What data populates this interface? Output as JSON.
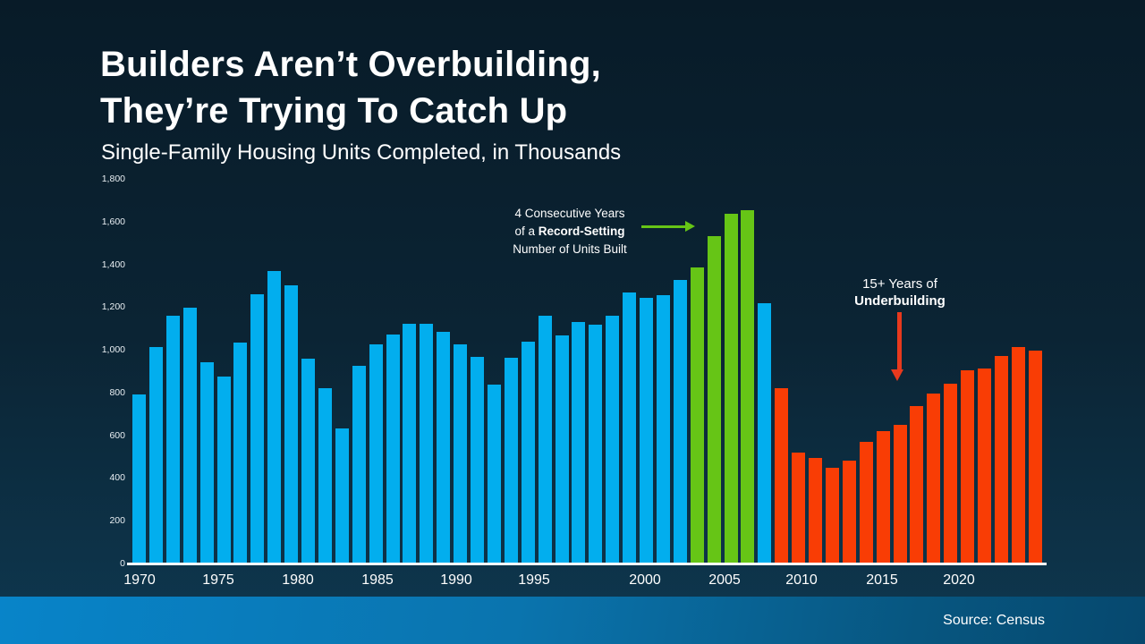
{
  "header": {
    "title_line1": "Builders Aren’t Overbuilding,",
    "title_line2": "They’re Trying To Catch Up",
    "subtitle": "Single-Family Housing Units Completed, in Thousands"
  },
  "annotations": {
    "record": {
      "line1": "4 Consecutive Years",
      "line2_prefix": "of a ",
      "line2_bold": "Record-Setting",
      "line3": "Number of Units Built"
    },
    "underbuilding": {
      "line1": "15+ Years of",
      "line2_bold": "Underbuilding"
    }
  },
  "footer": {
    "source": "Source: Census"
  },
  "colors": {
    "background_top": "#081B28",
    "background_bottom": "#0E3850",
    "bar_blue": "#02AEEE",
    "bar_green": "#66C516",
    "bar_red": "#F93D05",
    "arrow_green": "#66C516",
    "arrow_red": "#E8391D",
    "axis_line": "#FFFFFF",
    "text": "#FFFFFF",
    "footer_gradient_left": "#0884C9",
    "footer_gradient_right": "#06486E"
  },
  "chart_data": {
    "type": "bar",
    "title": "Builders Aren’t Overbuilding, They’re Trying To Catch Up",
    "subtitle": "Single-Family Housing Units Completed, in Thousands",
    "series_name": "Single-Family Housing Units Completed (thousands)",
    "ylim": [
      0,
      1800
    ],
    "grid": false,
    "legend": false,
    "ytick_values": [
      0,
      200,
      400,
      600,
      800,
      1000,
      1200,
      1400,
      1600,
      1800
    ],
    "ytick_labels": [
      "0",
      "200",
      "400",
      "600",
      "800",
      "1,000",
      "1,200",
      "1,400",
      "1,600",
      "1,800"
    ],
    "xtick_years": [
      1970,
      1975,
      1980,
      1985,
      1990,
      1995,
      2000,
      2005,
      2010,
      2015,
      2020
    ],
    "years": [
      1970,
      1971,
      1972,
      1973,
      1974,
      1975,
      1976,
      1977,
      1978,
      1979,
      1980,
      1981,
      1982,
      1983,
      1984,
      1985,
      1986,
      1987,
      1988,
      1989,
      1990,
      1991,
      1992,
      1993,
      1994,
      1995,
      1996,
      1997,
      1998,
      1999,
      2000,
      2001,
      2002,
      2003,
      2004,
      2005,
      2006,
      2007,
      2008,
      2009,
      2010,
      2011,
      2012,
      2013,
      2014,
      2015,
      2016,
      2017,
      2018,
      2019,
      2020,
      2021,
      2022,
      2023
    ],
    "values": [
      793,
      1014,
      1160,
      1197,
      940,
      875,
      1034,
      1258,
      1369,
      1301,
      957,
      819,
      632,
      924,
      1025,
      1072,
      1120,
      1123,
      1085,
      1026,
      966,
      838,
      964,
      1039,
      1160,
      1066,
      1129,
      1116,
      1160,
      1270,
      1242,
      1256,
      1325,
      1386,
      1532,
      1636,
      1655,
      1218,
      819,
      520,
      496,
      447,
      483,
      569,
      620,
      648,
      738,
      795,
      840,
      903,
      912,
      970,
      1015,
      998
    ],
    "segments": {
      "record_setting_years": [
        2003,
        2004,
        2005,
        2006
      ],
      "underbuilding_start_year": 2008
    }
  }
}
